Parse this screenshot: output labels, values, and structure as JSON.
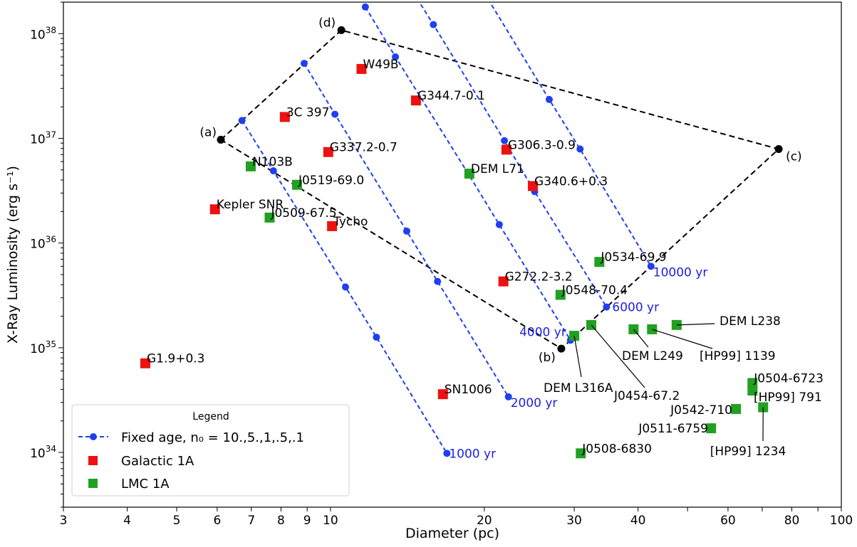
{
  "chart_data": {
    "type": "scatter",
    "xlabel": "Diameter (pc)",
    "ylabel": "X-Ray Luminosity (erg s⁻¹)",
    "xscale": "log",
    "yscale": "log",
    "xlim": [
      3,
      100
    ],
    "ylim": [
      3e+33,
      2e+38
    ],
    "x_tick_labels": [
      "3",
      "4",
      "5",
      "6",
      "7",
      "8",
      "9",
      "10",
      "20",
      "30",
      "40",
      "60",
      "80",
      "100"
    ],
    "y_tick_labels": [
      "10^34",
      "10^35",
      "10^36",
      "10^37",
      "10^38"
    ],
    "grid": false,
    "legend": {
      "title": "Legend",
      "placement": "lower-left",
      "entries": [
        "Fixed age, n₀ = 10.,5.,1,.5,.1",
        "Galactic 1A",
        "LMC 1A"
      ]
    },
    "colors": {
      "fixed_age": "#1f3ff0",
      "galactic": "#ee1111",
      "lmc": "#22a022",
      "boundary": "#000000"
    },
    "fixed_age_series": [
      {
        "label": "1000 yr",
        "points": [
          [
            6.71,
            1.48e+37
          ],
          [
            7.73,
            4.9e+36
          ],
          [
            10.7,
            3.8e+35
          ],
          [
            12.3,
            1.26e+35
          ],
          [
            16.9,
            9.8e+33
          ]
        ]
      },
      {
        "label": "2000 yr",
        "points": [
          [
            8.88,
            5.2e+37
          ],
          [
            10.2,
            1.7e+37
          ],
          [
            14.1,
            1.3e+36
          ],
          [
            16.2,
            4.3e+35
          ],
          [
            22.3,
            3.4e+34
          ]
        ]
      },
      {
        "label": "4000 yr",
        "points": [
          [
            11.7,
            1.8e+38
          ],
          [
            13.4,
            6e+37
          ],
          [
            18.6,
            4.6e+36
          ],
          [
            21.4,
            1.5e+36
          ],
          [
            29.5,
            1.18e+35
          ]
        ]
      },
      {
        "label": "6000 yr",
        "points": [
          [
            13.8,
            3.7e+38
          ],
          [
            15.9,
            1.22e+38
          ],
          [
            21.9,
            9.5e+36
          ],
          [
            25.1,
            3.1e+36
          ],
          [
            34.7,
            2.45e+35
          ]
        ]
      },
      {
        "label": "10000 yr",
        "points": [
          [
            16.9,
            9.3e+38
          ],
          [
            19.5,
            3e+38
          ],
          [
            26.8,
            2.35e+37
          ],
          [
            30.8,
            7.9e+36
          ],
          [
            42.4,
            6e+35
          ]
        ]
      }
    ],
    "boundary": {
      "points": [
        {
          "label": "(a)",
          "x": 6.1,
          "y": 9.7e+36
        },
        {
          "label": "(d)",
          "x": 10.5,
          "y": 1.08e+38
        },
        {
          "label": "(c)",
          "x": 75.4,
          "y": 7.9e+36
        },
        {
          "label": "(b)",
          "x": 28.3,
          "y": 9.8e+34
        }
      ]
    },
    "galactic": [
      {
        "name": "G1.9+0.3",
        "x": 4.34,
        "y": 7.1e+34
      },
      {
        "name": "Kepler SNR",
        "x": 5.94,
        "y": 2.1e+36
      },
      {
        "name": "3C 397",
        "x": 8.14,
        "y": 1.6e+37
      },
      {
        "name": "G337.2-0.7",
        "x": 9.9,
        "y": 7.4e+36
      },
      {
        "name": "Tycho",
        "x": 10.07,
        "y": 1.45e+36
      },
      {
        "name": "W49B",
        "x": 11.5,
        "y": 4.6e+37
      },
      {
        "name": "G344.7-0.1",
        "x": 14.7,
        "y": 2.3e+37
      },
      {
        "name": "SN1006",
        "x": 16.6,
        "y": 3.6e+34
      },
      {
        "name": "G272.2-3.2",
        "x": 21.8,
        "y": 4.3e+35
      },
      {
        "name": "G306.3-0.9",
        "x": 22.1,
        "y": 7.8e+36
      },
      {
        "name": "G340.6+0.3",
        "x": 24.9,
        "y": 3.5e+36
      }
    ],
    "lmc": [
      {
        "name": "N103B",
        "x": 6.98,
        "y": 5.4e+36
      },
      {
        "name": "J0509-67.5",
        "x": 7.6,
        "y": 1.75e+36
      },
      {
        "name": "J0519-69.0",
        "x": 8.6,
        "y": 3.6e+36
      },
      {
        "name": "DEM L71",
        "x": 18.7,
        "y": 4.6e+36
      },
      {
        "name": "J0534-69.9",
        "x": 33.6,
        "y": 6.6e+35
      },
      {
        "name": "J0548-70.4",
        "x": 28.2,
        "y": 3.2e+35
      },
      {
        "name": "DEM L316A",
        "x": 30.0,
        "y": 1.3e+35
      },
      {
        "name": "J0454-67.2",
        "x": 32.4,
        "y": 1.65e+35
      },
      {
        "name": "DEM L249",
        "x": 39.2,
        "y": 1.5e+35
      },
      {
        "name": "[HP99] 1139",
        "x": 42.6,
        "y": 1.5e+35
      },
      {
        "name": "DEM L238",
        "x": 47.6,
        "y": 1.65e+35
      },
      {
        "name": "J0504-6723",
        "x": 67.0,
        "y": 4.6e+34
      },
      {
        "name": "[HP99] 791",
        "x": 67.0,
        "y": 3.9e+34
      },
      {
        "name": "J0542-710",
        "x": 62.2,
        "y": 2.6e+34
      },
      {
        "name": "[HP99] 1234",
        "x": 70.3,
        "y": 2.7e+34
      },
      {
        "name": "J0511-6759",
        "x": 55.6,
        "y": 1.7e+34
      },
      {
        "name": "J0508-6830",
        "x": 30.9,
        "y": 9.8e+33
      }
    ]
  }
}
